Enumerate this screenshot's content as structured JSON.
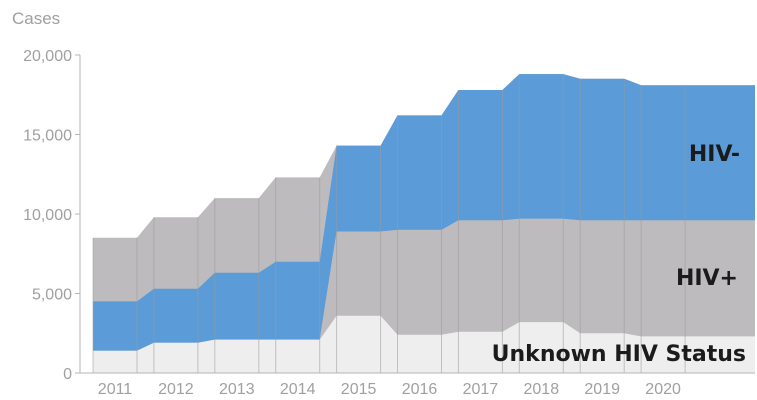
{
  "chart_data": {
    "type": "area",
    "stacked": true,
    "ylabel": "Cases",
    "xlabel": "",
    "ylim": [
      0,
      20000
    ],
    "yticks": [
      0,
      5000,
      10000,
      15000,
      20000
    ],
    "ytick_labels": [
      "0",
      "5,000",
      "10,000",
      "15,000",
      "20,000"
    ],
    "categories": [
      "2011",
      "2012",
      "2013",
      "2014",
      "2015",
      "2016",
      "2017",
      "2018",
      "2019",
      "2020"
    ],
    "series": [
      {
        "name": "Unknown HIV Status",
        "color": "#eeeeee",
        "values": [
          1400,
          1900,
          2100,
          2100,
          3600,
          2400,
          2600,
          3200,
          2500,
          2300
        ]
      },
      {
        "name": "HIV+",
        "color": "#bdbbbd",
        "values": [
          3100,
          3400,
          4200,
          4900,
          5300,
          6600,
          7000,
          6500,
          7100,
          7300
        ]
      },
      {
        "name": "HIV-",
        "color": "#5a9bd8",
        "values": [
          0,
          0,
          0,
          0,
          5400,
          7200,
          8200,
          9100,
          8900,
          8500
        ]
      }
    ],
    "gray_totals": [
      8500,
      9800,
      11000,
      12300
    ],
    "legend": "inline-right",
    "grid": false
  }
}
